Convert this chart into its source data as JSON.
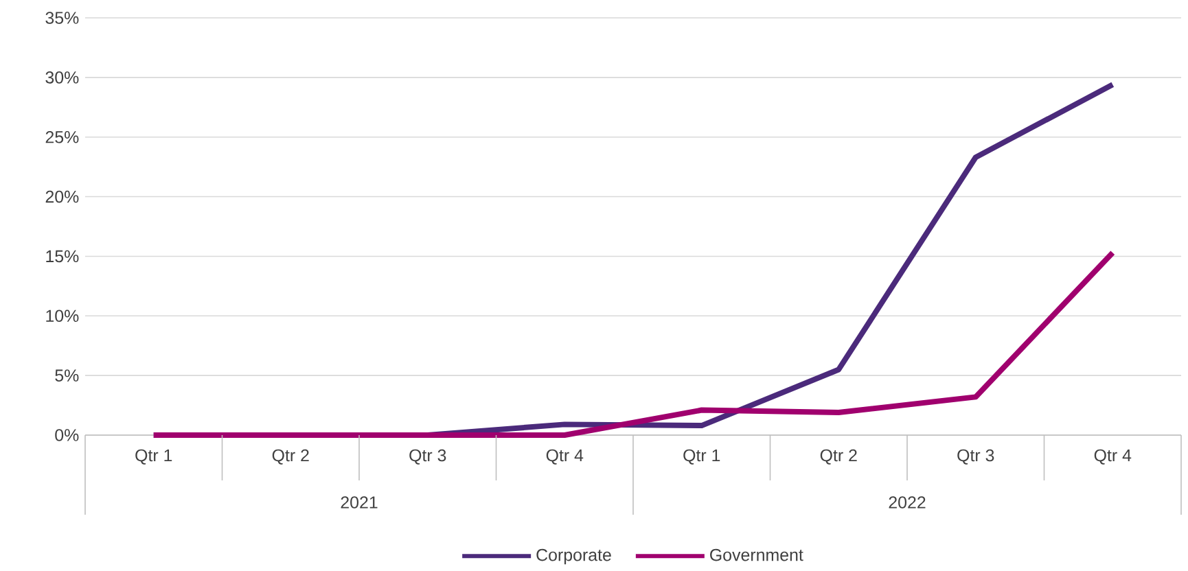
{
  "chart_data": {
    "type": "line",
    "categories": [
      "Qtr 1",
      "Qtr 2",
      "Qtr 3",
      "Qtr 4",
      "Qtr 1",
      "Qtr 2",
      "Qtr 3",
      "Qtr 4"
    ],
    "annotations": [
      "2021",
      "2022"
    ],
    "series": [
      {
        "name": "Corporate",
        "color": "#4b2a7b",
        "values": [
          0,
          0,
          0,
          0.9,
          0.8,
          5.5,
          23.3,
          29.4
        ]
      },
      {
        "name": "Government",
        "color": "#a0006e",
        "values": [
          0,
          0,
          0,
          0,
          2.1,
          1.9,
          3.2,
          15.3
        ]
      }
    ],
    "ylim": [
      0,
      35
    ],
    "yticks": [
      {
        "value": 0,
        "label": "0%"
      },
      {
        "value": 5,
        "label": "5%"
      },
      {
        "value": 10,
        "label": "10%"
      },
      {
        "value": 15,
        "label": "15%"
      },
      {
        "value": 20,
        "label": "20%"
      },
      {
        "value": 25,
        "label": "25%"
      },
      {
        "value": 30,
        "label": "30%"
      },
      {
        "value": 35,
        "label": "35%"
      }
    ],
    "grid": "y",
    "legend": "bottom",
    "marker": "none",
    "line_style": "solid"
  }
}
